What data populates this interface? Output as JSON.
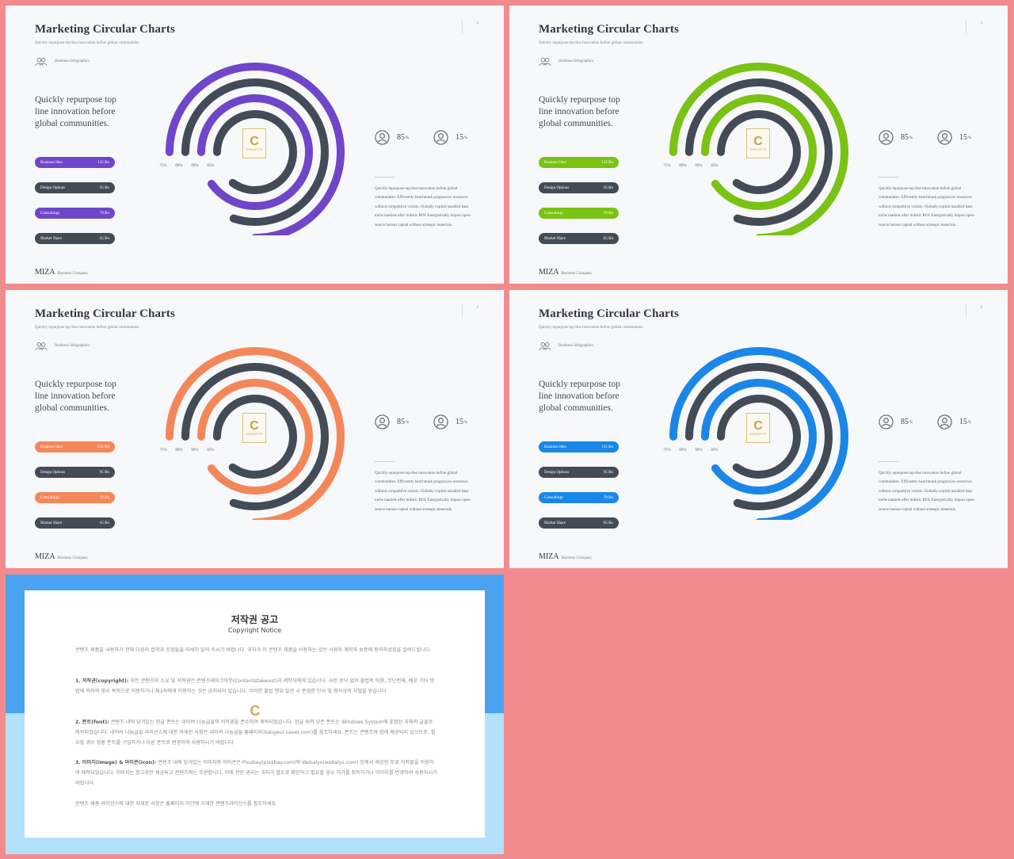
{
  "slides": [
    {
      "page": "2",
      "accent": "#6f46c9",
      "title": "Marketing Circular Charts",
      "subtitle": "Quickly repurpose top-line innovation before global communities.",
      "category": "Business Infographics",
      "lead": "Quickly repurpose top line innovation before global communities.",
      "items": [
        {
          "label": "Business Idea",
          "value": "135 Bn"
        },
        {
          "label": "Design Options",
          "value": "95 Bn"
        },
        {
          "label": "Consultings",
          "value": "70 Bn"
        },
        {
          "label": "Market Share",
          "value": "65 Bn"
        }
      ],
      "chart_data": {
        "type": "radial-bar",
        "categories": [
          "75%",
          "80%",
          "90%",
          "85%"
        ],
        "values": [
          75,
          80,
          90,
          85
        ]
      },
      "logo_mark": "C",
      "logo_text": "CONCEPTS",
      "stats": [
        {
          "value": "85",
          "unit": "%"
        },
        {
          "value": "15",
          "unit": "%"
        }
      ],
      "description": "Quickly repurpose top-line innovation before global communities. Efficiently benchmark progressive resources without competitive vortals. Globally exploit installed base niche markets after holistic ROI. Energistically impact open-source human capital without strategic materials.",
      "brand": "MIZA",
      "brand_sub": "Business Company"
    },
    {
      "page": "3",
      "accent": "#7ac214",
      "title": "Marketing Circular Charts",
      "subtitle": "Quickly repurpose top-line innovation before global communities.",
      "category": "Business Infographics",
      "lead": "Quickly repurpose top line innovation before global communities.",
      "items": [
        {
          "label": "Business Idea",
          "value": "135 Bn"
        },
        {
          "label": "Design Options",
          "value": "95 Bn"
        },
        {
          "label": "Consultings",
          "value": "70 Bn"
        },
        {
          "label": "Market Share",
          "value": "65 Bn"
        }
      ],
      "chart_data": {
        "type": "radial-bar",
        "categories": [
          "75%",
          "80%",
          "90%",
          "85%"
        ],
        "values": [
          75,
          80,
          90,
          85
        ]
      },
      "logo_mark": "C",
      "logo_text": "CONCEPTS",
      "stats": [
        {
          "value": "85",
          "unit": "%"
        },
        {
          "value": "15",
          "unit": "%"
        }
      ],
      "description": "Quickly repurpose top-line innovation before global communities. Efficiently benchmark progressive resources without competitive vortals. Globally exploit installed base niche markets after holistic ROI. Energistically impact open-source human capital without strategic materials.",
      "brand": "MIZA",
      "brand_sub": "Business Company"
    },
    {
      "page": "4",
      "accent": "#f4875a",
      "title": "Marketing Circular Charts",
      "subtitle": "Quickly repurpose top-line innovation before global communities.",
      "category": "Business Infographics",
      "lead": "Quickly repurpose top line innovation before global communities.",
      "items": [
        {
          "label": "Business Idea",
          "value": "135 Bn"
        },
        {
          "label": "Design Options",
          "value": "95 Bn"
        },
        {
          "label": "Consultings",
          "value": "70 Bn"
        },
        {
          "label": "Market Share",
          "value": "65 Bn"
        }
      ],
      "chart_data": {
        "type": "radial-bar",
        "categories": [
          "75%",
          "80%",
          "90%",
          "85%"
        ],
        "values": [
          75,
          80,
          90,
          85
        ]
      },
      "logo_mark": "C",
      "logo_text": "CONCEPTS",
      "stats": [
        {
          "value": "85",
          "unit": "%"
        },
        {
          "value": "15",
          "unit": "%"
        }
      ],
      "description": "Quickly repurpose top-line innovation before global communities. Efficiently benchmark progressive resources without competitive vortals. Globally exploit installed base niche markets after holistic ROI. Energistically impact open-source human capital without strategic materials.",
      "brand": "MIZA",
      "brand_sub": "Business Company"
    },
    {
      "page": "5",
      "accent": "#1a86e8",
      "title": "Marketing Circular Charts",
      "subtitle": "Quickly repurpose top-line innovation before global communities.",
      "category": "Business Infographics",
      "lead": "Quickly repurpose top line innovation before global communities.",
      "items": [
        {
          "label": "Business Idea",
          "value": "135 Bn"
        },
        {
          "label": "Design Options",
          "value": "95 Bn"
        },
        {
          "label": "Consultings",
          "value": "70 Bn"
        },
        {
          "label": "Market Share",
          "value": "65 Bn"
        }
      ],
      "chart_data": {
        "type": "radial-bar",
        "categories": [
          "75%",
          "80%",
          "90%",
          "85%"
        ],
        "values": [
          75,
          80,
          90,
          85
        ]
      },
      "logo_mark": "C",
      "logo_text": "CONCEPTS",
      "stats": [
        {
          "value": "85",
          "unit": "%"
        },
        {
          "value": "15",
          "unit": "%"
        }
      ],
      "description": "Quickly repurpose top-line innovation before global communities. Efficiently benchmark progressive resources without competitive vortals. Globally exploit installed base niche markets after holistic ROI. Energistically impact open-source human capital without strategic materials.",
      "brand": "MIZA",
      "brand_sub": "Business Company"
    }
  ],
  "dark_color": "#424b56",
  "copyright": {
    "title": "저작권 공고",
    "subtitle": "Copyright Notice",
    "intro": "콘텐츠 제품을 사용하기 전에 다음의 합약과 조항들을 자세히 읽어 주시기 바랍니다. 귀하가 이 콘텐츠 제품을 사용하는 것은 사용자 계약과 보증에 동의하셨음을 알려드립니다.",
    "p1_head": "1. 저작권(copyright):",
    "p1_body": " 모든 콘텐츠의 소유 및 저작권은 콘텐츠테이크아웃(Contentstakeout)과 제작자에게 있습니다. 사전 승낙 없이 불법적 이용, 무단전재, 배포 기타 방법에 의하여 영리 목적으로 이용하거나 제3자에게 이용하는 것은 금지되어 있습니다. 이러한 불법 행위 발견 시 준엄한 민사 및 형사상의 처벌을 받습니다.",
    "p2_head": "2. 폰트(font):",
    "p2_body": " 콘텐츠 내에 담겨있는 한글 폰트는 네이버 나눔글꼴의 저작권을 준수하여 제작되었습니다. 한글 외의 모든 폰트는 Windows System에 포함된 자체의 글꼴로 제작되었습니다. 네이버 나눔글꼴 라이선스에 대한 자세한 사항은 네이버 나눔글꼴 홈페이지(hangeul.naver.com)를 참조하세요. 폰트는 콘텐츠와 함께 배공되지 않으므로, 필요할 경우 정품 폰트를 구입하거나 다른 폰트로 변경하여 사용하시기 바랍니다.",
    "p3_head": "3. 이미지(image) & 아이콘(icon):",
    "p3_body": " 콘텐츠 내에 담겨있는 이미지와 아이콘은 Pixabay(pixabay.com)와 Webalys(webalys.com) 등에서 제공한 무료 저작물을 이용하여 제작되었습니다. 이미지는 참고로만 제공되고 콘텐츠와는 무관합니다. 이에 관한 권리는 귀하가 별도로 확인하고 필요할 경우 허가를 취득하거나 이미지를 변경하여 사용하시기 바랍니다.",
    "closing": "콘텐츠 제품 라이선스에 대한 자세한 사항은 홈페이지 하단에 기재한 콘텐츠라이선스를 참조하세요.",
    "logo_mark": "C"
  }
}
